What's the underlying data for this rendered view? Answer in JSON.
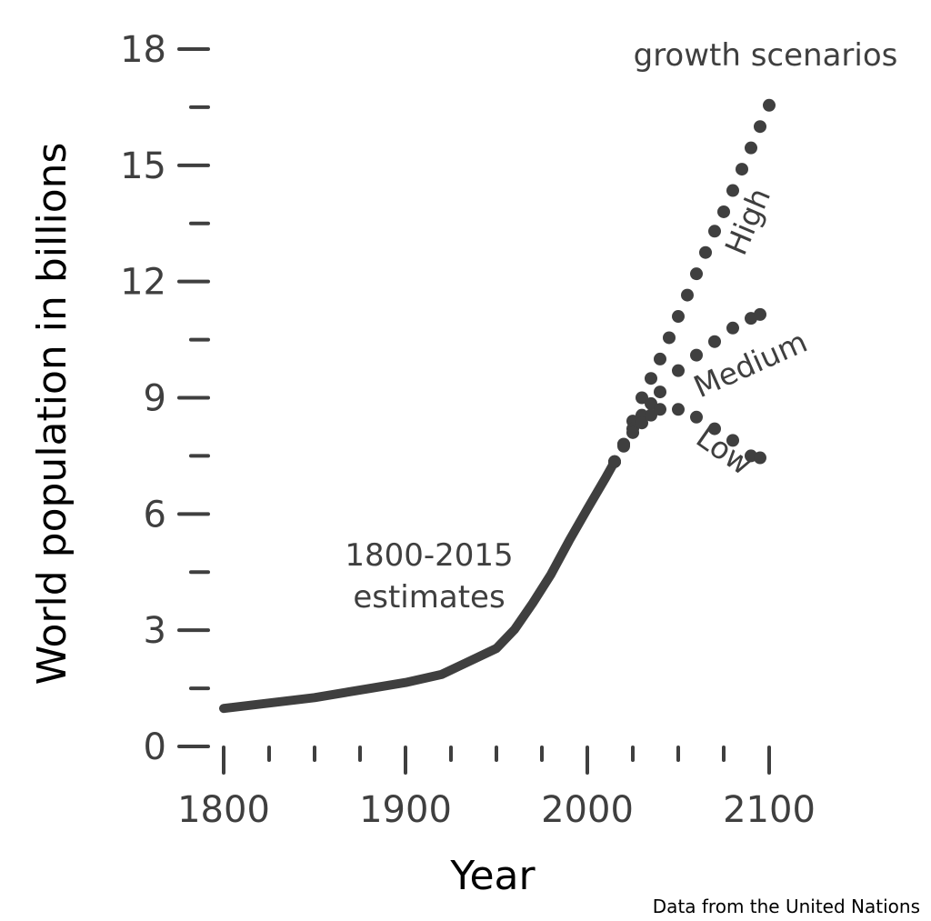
{
  "chart_data": {
    "type": "line",
    "title": "",
    "xlabel": "Year",
    "ylabel": "World population in billions",
    "xlim": [
      1800,
      2100
    ],
    "ylim": [
      0,
      18
    ],
    "x_ticks": [
      1800,
      1900,
      2000,
      2100
    ],
    "y_ticks": [
      0,
      3,
      6,
      9,
      12,
      15,
      18
    ],
    "grid": false,
    "legend": "none",
    "color": "#3f3f3f",
    "annotations": {
      "estimates": [
        "1800-2015",
        "estimates"
      ],
      "scenarios": "growth scenarios",
      "source": "Data from the United Nations"
    },
    "series": [
      {
        "name": "1800-2015 estimates",
        "style": "solid",
        "x": [
          1800,
          1850,
          1900,
          1920,
          1950,
          1960,
          1970,
          1980,
          1990,
          2000,
          2010,
          2015
        ],
        "y": [
          0.98,
          1.26,
          1.65,
          1.86,
          2.53,
          3.02,
          3.7,
          4.44,
          5.31,
          6.13,
          6.93,
          7.35
        ]
      },
      {
        "name": "High",
        "style": "dotted",
        "x": [
          2015,
          2020,
          2025,
          2030,
          2035,
          2040,
          2045,
          2050,
          2055,
          2060,
          2065,
          2070,
          2075,
          2080,
          2085,
          2090,
          2095,
          2100
        ],
        "y": [
          7.35,
          7.8,
          8.4,
          9.0,
          9.5,
          10.0,
          10.55,
          11.1,
          11.65,
          12.2,
          12.75,
          13.3,
          13.8,
          14.35,
          14.9,
          15.45,
          16.0,
          16.55
        ]
      },
      {
        "name": "Medium",
        "style": "dotted",
        "x": [
          2015,
          2020,
          2025,
          2030,
          2035,
          2040,
          2050,
          2060,
          2070,
          2080,
          2090,
          2095
        ],
        "y": [
          7.35,
          7.8,
          8.2,
          8.55,
          8.85,
          9.15,
          9.7,
          10.1,
          10.45,
          10.8,
          11.05,
          11.15
        ]
      },
      {
        "name": "Low",
        "style": "dotted",
        "x": [
          2015,
          2020,
          2025,
          2030,
          2035,
          2040,
          2050,
          2060,
          2070,
          2080,
          2090,
          2095
        ],
        "y": [
          7.35,
          7.75,
          8.1,
          8.35,
          8.55,
          8.7,
          8.7,
          8.5,
          8.2,
          7.9,
          7.5,
          7.45
        ]
      }
    ]
  }
}
